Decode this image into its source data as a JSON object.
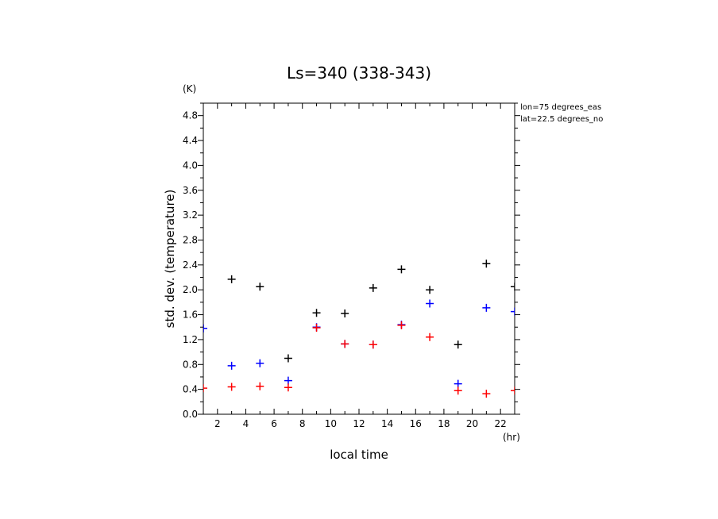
{
  "chart_data": {
    "type": "scatter",
    "title": "Ls=340 (338-343)",
    "xlabel": "local time",
    "ylabel": "std. dev. (temperature)",
    "x_unit": "(hr)",
    "y_unit": "(K)",
    "xlim": [
      1,
      23
    ],
    "ylim": [
      0,
      5
    ],
    "x_ticks": [
      "2",
      "4",
      "6",
      "8",
      "10",
      "12",
      "14",
      "16",
      "18",
      "20",
      "22"
    ],
    "y_ticks": [
      "0.0",
      "0.4",
      "0.8",
      "1.2",
      "1.6",
      "2.0",
      "2.4",
      "2.8",
      "3.2",
      "3.6",
      "4.0",
      "4.4",
      "4.8"
    ],
    "annotations": [
      "lon=75 degrees_eas",
      "lat=22.5 degrees_no"
    ],
    "grid": false,
    "marker": "+",
    "series": [
      {
        "color": "#000000",
        "points": [
          [
            1,
            1.38
          ],
          [
            3,
            2.17
          ],
          [
            5,
            2.05
          ],
          [
            7,
            0.9
          ],
          [
            9,
            1.63
          ],
          [
            11,
            1.62
          ],
          [
            13,
            2.03
          ],
          [
            15,
            2.33
          ],
          [
            17,
            2.0
          ],
          [
            19,
            1.12
          ],
          [
            21,
            2.42
          ],
          [
            23,
            2.05
          ]
        ]
      },
      {
        "color": "#0000ff",
        "points": [
          [
            1,
            1.38
          ],
          [
            3,
            0.78
          ],
          [
            5,
            0.82
          ],
          [
            7,
            0.54
          ],
          [
            9,
            1.4
          ],
          [
            11,
            1.13
          ],
          [
            13,
            1.12
          ],
          [
            15,
            1.44
          ],
          [
            17,
            1.78
          ],
          [
            19,
            0.49
          ],
          [
            21,
            1.71
          ],
          [
            23,
            1.65
          ]
        ]
      },
      {
        "color": "#ff0000",
        "points": [
          [
            1,
            0.42
          ],
          [
            3,
            0.44
          ],
          [
            5,
            0.45
          ],
          [
            7,
            0.43
          ],
          [
            9,
            1.39
          ],
          [
            11,
            1.13
          ],
          [
            13,
            1.12
          ],
          [
            15,
            1.43
          ],
          [
            17,
            1.24
          ],
          [
            19,
            0.38
          ],
          [
            21,
            0.33
          ],
          [
            23,
            0.38
          ]
        ]
      }
    ]
  }
}
